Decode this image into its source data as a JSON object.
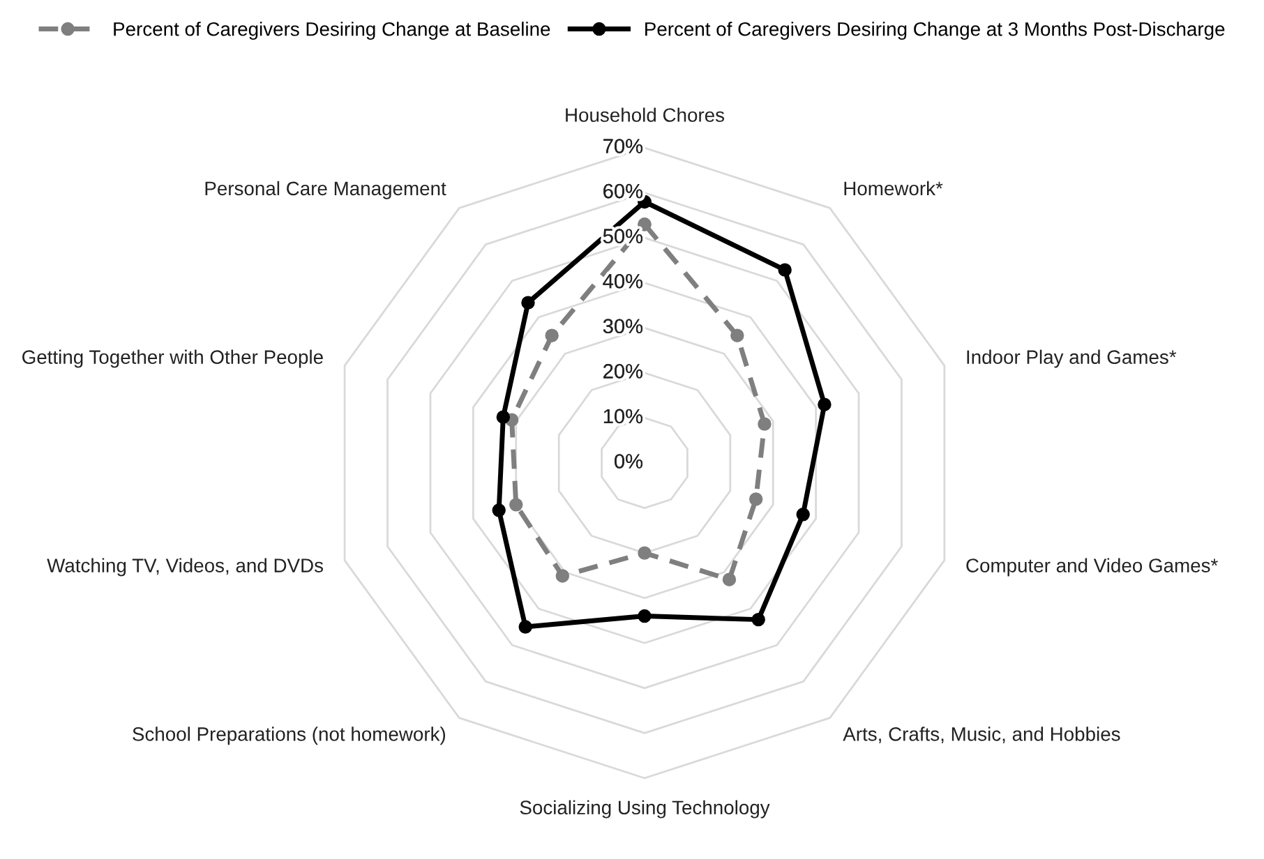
{
  "chart_data": {
    "type": "radar",
    "categories": [
      "Household Chores",
      "Homework*",
      "Indoor Play and Games*",
      "Computer and Video Games*",
      "Arts, Crafts, Music, and Hobbies",
      "Socializing Using Technology",
      "School Preparations (not homework)",
      "Watching TV, Videos, and DVDs",
      "Getting Together with Other People",
      "Personal Care Management"
    ],
    "series": [
      {
        "name": "Percent of Caregivers Desiring Change at Baseline",
        "color": "#7f7f7f",
        "line_style": "dashed",
        "values": [
          53,
          35,
          28,
          26,
          32,
          20,
          31,
          30,
          31,
          35
        ]
      },
      {
        "name": "Percent of Caregivers Desiring Change at 3 Months Post-Discharge",
        "color": "#000000",
        "line_style": "solid",
        "values": [
          58,
          53,
          42,
          37,
          43,
          34,
          45,
          34,
          33,
          44
        ]
      }
    ],
    "ylim": [
      0,
      70
    ],
    "yticks": [
      {
        "value": 0,
        "label": "0%"
      },
      {
        "value": 10,
        "label": "10%"
      },
      {
        "value": 20,
        "label": "20%"
      },
      {
        "value": 30,
        "label": "30%"
      },
      {
        "value": 40,
        "label": "40%"
      },
      {
        "value": 50,
        "label": "50%"
      },
      {
        "value": 60,
        "label": "60%"
      },
      {
        "value": 70,
        "label": "70%"
      }
    ],
    "grid": true,
    "legend": "top",
    "marker": "circle"
  }
}
